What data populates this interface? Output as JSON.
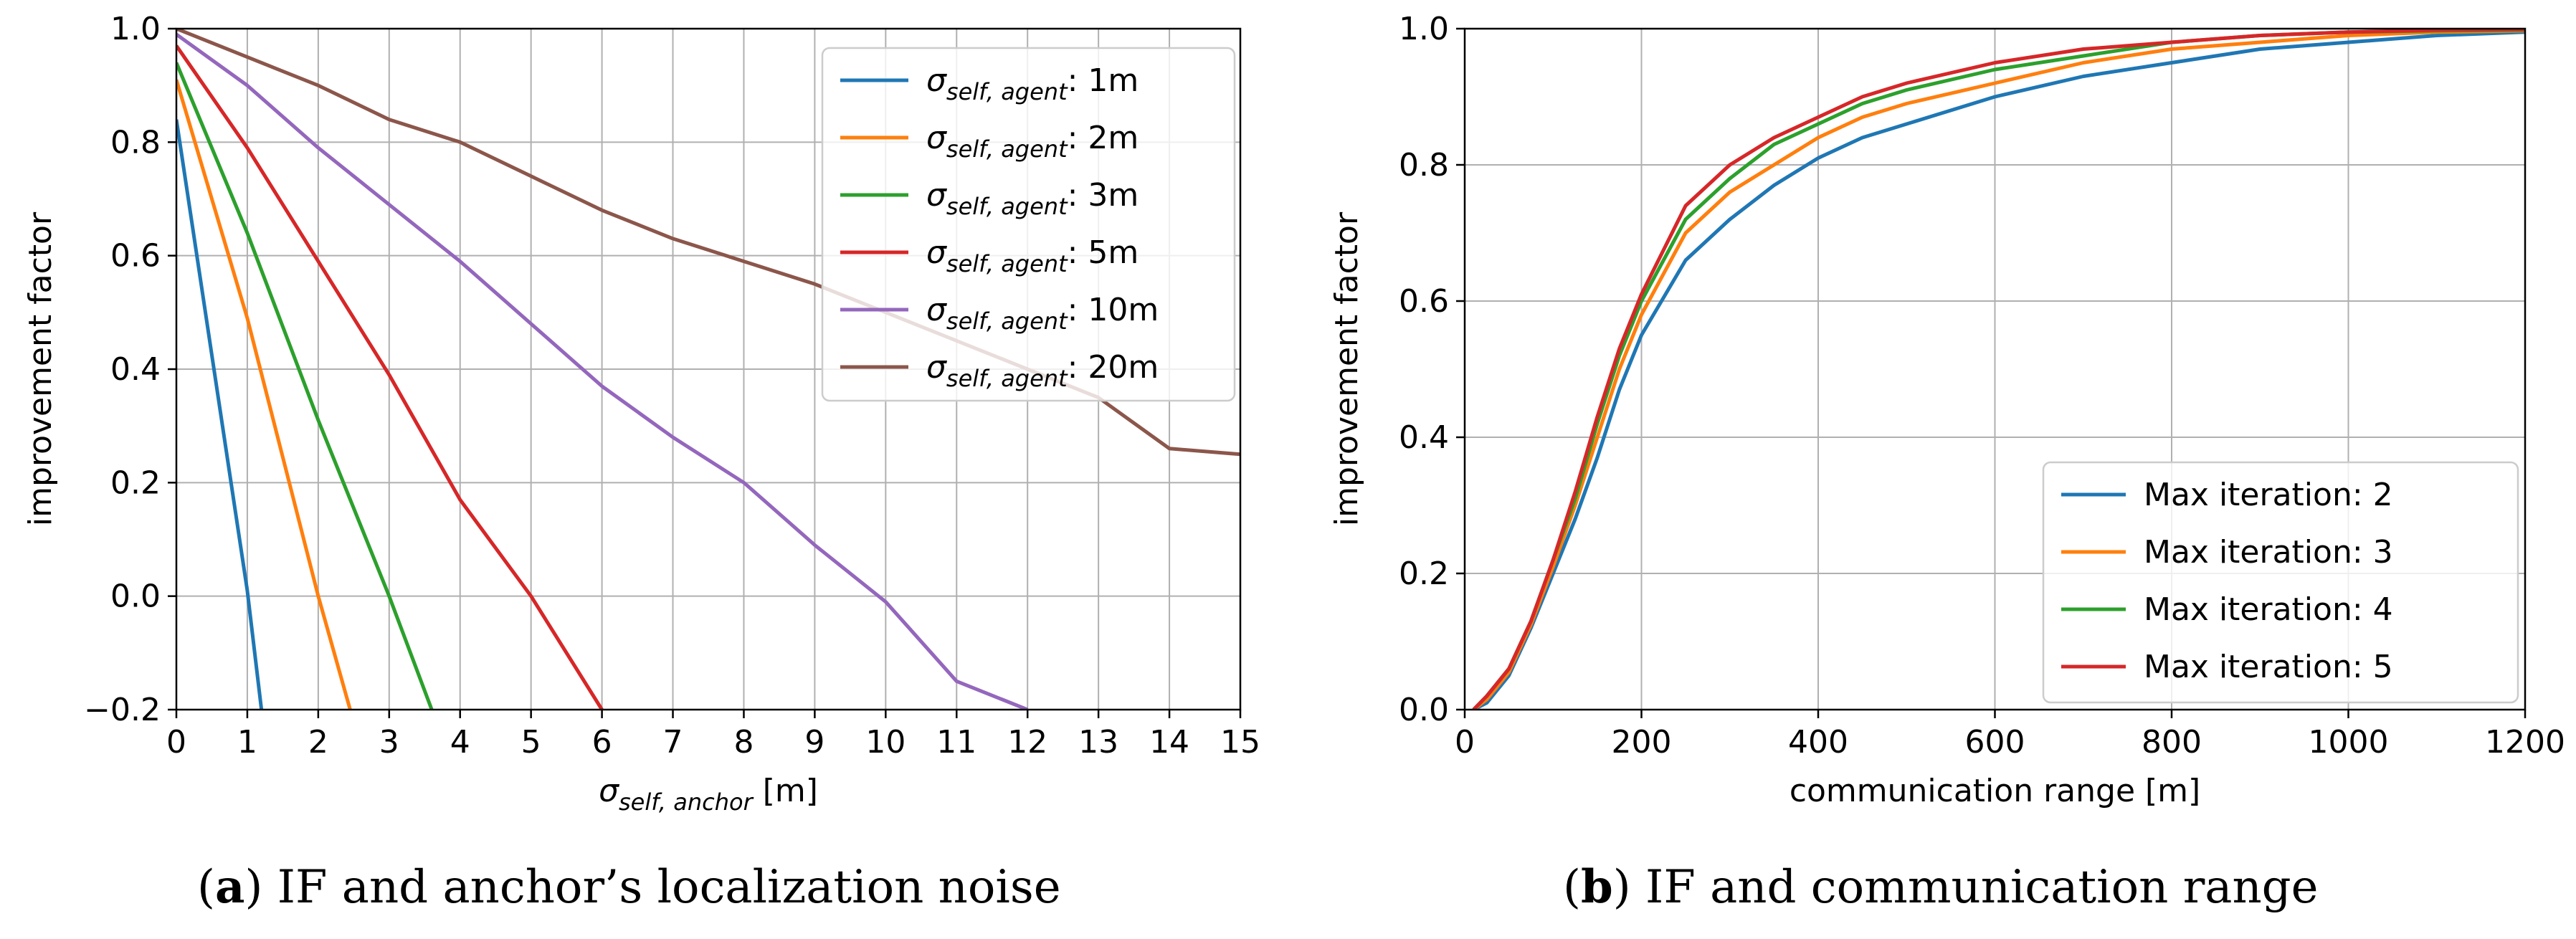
{
  "chart_data": [
    {
      "type": "line",
      "panel": "a",
      "xlabel": "σ",
      "xlabel_subscript": "self, anchor",
      "xlabel_unit": " [m]",
      "ylabel": "improvement factor",
      "xlim": [
        0,
        15
      ],
      "ylim": [
        -0.2,
        1.0
      ],
      "xticks": [
        0,
        1,
        2,
        3,
        4,
        5,
        6,
        7,
        8,
        9,
        10,
        11,
        12,
        13,
        14,
        15
      ],
      "xtick_labels": [
        "0",
        "1",
        "2",
        "3",
        "4",
        "5",
        "6",
        "7",
        "8",
        "9",
        "10",
        "11",
        "12",
        "13",
        "14",
        "15"
      ],
      "yticks": [
        -0.2,
        0.0,
        0.2,
        0.4,
        0.6,
        0.8,
        1.0
      ],
      "ytick_labels": [
        "−0.2",
        "0.0",
        "0.2",
        "0.4",
        "0.6",
        "0.8",
        "1.0"
      ],
      "grid": true,
      "legend_position": "top-right",
      "series": [
        {
          "name": "σ",
          "sub": "self, agent",
          "suffix": ": 1m",
          "color": "#1f77b4",
          "x": [
            0,
            1,
            1.2
          ],
          "y": [
            0.84,
            0.01,
            -0.2
          ]
        },
        {
          "name": "σ",
          "sub": "self, agent",
          "suffix": ": 2m",
          "color": "#ff7f0e",
          "x": [
            0,
            1,
            2,
            2.45
          ],
          "y": [
            0.91,
            0.49,
            0.0,
            -0.2
          ]
        },
        {
          "name": "σ",
          "sub": "self, agent",
          "suffix": ": 3m",
          "color": "#2ca02c",
          "x": [
            0,
            1,
            2,
            3,
            3.6
          ],
          "y": [
            0.94,
            0.64,
            0.31,
            0.0,
            -0.2
          ]
        },
        {
          "name": "σ",
          "sub": "self, agent",
          "suffix": ": 5m",
          "color": "#d62728",
          "x": [
            0,
            1,
            2,
            3,
            4,
            5,
            6
          ],
          "y": [
            0.97,
            0.79,
            0.59,
            0.39,
            0.17,
            0.0,
            -0.2
          ]
        },
        {
          "name": "σ",
          "sub": "self, agent",
          "suffix": ": 10m",
          "color": "#9467bd",
          "x": [
            0,
            1,
            2,
            3,
            4,
            5,
            6,
            7,
            8,
            9,
            10,
            11,
            12
          ],
          "y": [
            0.99,
            0.9,
            0.79,
            0.69,
            0.59,
            0.48,
            0.37,
            0.28,
            0.2,
            0.09,
            -0.01,
            -0.15,
            -0.2
          ]
        },
        {
          "name": "σ",
          "sub": "self, agent",
          "suffix": ": 20m",
          "color": "#8c564b",
          "x": [
            0,
            1,
            2,
            3,
            4,
            5,
            6,
            7,
            8,
            9,
            10,
            11,
            12,
            13,
            14,
            15
          ],
          "y": [
            1.0,
            0.95,
            0.9,
            0.84,
            0.8,
            0.74,
            0.68,
            0.63,
            0.59,
            0.55,
            0.5,
            0.45,
            0.4,
            0.35,
            0.26,
            0.25
          ]
        }
      ]
    },
    {
      "type": "line",
      "panel": "b",
      "xlabel": "communication range [m]",
      "ylabel": "improvement factor",
      "xlim": [
        0,
        1200
      ],
      "ylim": [
        0.0,
        1.0
      ],
      "xticks": [
        0,
        200,
        400,
        600,
        800,
        1000,
        1200
      ],
      "xtick_labels": [
        "0",
        "200",
        "400",
        "600",
        "800",
        "1000",
        "1200"
      ],
      "yticks": [
        0.0,
        0.2,
        0.4,
        0.6,
        0.8,
        1.0
      ],
      "ytick_labels": [
        "0.0",
        "0.2",
        "0.4",
        "0.6",
        "0.8",
        "1.0"
      ],
      "grid": true,
      "legend_position": "bottom-right",
      "series": [
        {
          "name": "Max iteration: 2",
          "color": "#1f77b4",
          "x": [
            10,
            25,
            50,
            75,
            100,
            125,
            150,
            175,
            200,
            250,
            300,
            350,
            400,
            450,
            500,
            600,
            700,
            800,
            900,
            1000,
            1100,
            1200
          ],
          "y": [
            0.0,
            0.01,
            0.05,
            0.12,
            0.2,
            0.28,
            0.37,
            0.47,
            0.55,
            0.66,
            0.72,
            0.77,
            0.81,
            0.84,
            0.86,
            0.9,
            0.93,
            0.95,
            0.97,
            0.98,
            0.99,
            0.995
          ]
        },
        {
          "name": "Max iteration: 3",
          "color": "#ff7f0e",
          "x": [
            10,
            25,
            50,
            75,
            100,
            125,
            150,
            175,
            200,
            250,
            300,
            350,
            400,
            450,
            500,
            600,
            700,
            800,
            900,
            1000,
            1100,
            1200
          ],
          "y": [
            0.0,
            0.015,
            0.055,
            0.125,
            0.21,
            0.3,
            0.4,
            0.5,
            0.58,
            0.7,
            0.76,
            0.8,
            0.84,
            0.87,
            0.89,
            0.92,
            0.95,
            0.97,
            0.98,
            0.99,
            0.995,
            0.997
          ]
        },
        {
          "name": "Max iteration: 4",
          "color": "#2ca02c",
          "x": [
            10,
            25,
            50,
            75,
            100,
            125,
            150,
            175,
            200,
            250,
            300,
            350,
            400,
            450,
            500,
            600,
            700,
            800,
            900,
            1000,
            1100,
            1200
          ],
          "y": [
            0.0,
            0.02,
            0.06,
            0.13,
            0.22,
            0.31,
            0.42,
            0.52,
            0.6,
            0.72,
            0.78,
            0.83,
            0.86,
            0.89,
            0.91,
            0.94,
            0.96,
            0.98,
            0.99,
            0.995,
            0.997,
            0.998
          ]
        },
        {
          "name": "Max iteration: 5",
          "color": "#d62728",
          "x": [
            10,
            25,
            50,
            75,
            100,
            125,
            150,
            175,
            200,
            250,
            300,
            350,
            400,
            450,
            500,
            600,
            700,
            800,
            900,
            1000,
            1100,
            1200
          ],
          "y": [
            0.0,
            0.02,
            0.06,
            0.13,
            0.22,
            0.32,
            0.43,
            0.53,
            0.61,
            0.74,
            0.8,
            0.84,
            0.87,
            0.9,
            0.92,
            0.95,
            0.97,
            0.98,
            0.99,
            0.995,
            0.998,
            0.999
          ]
        }
      ]
    }
  ],
  "captions": {
    "a": {
      "label": "a",
      "text": " IF and anchor’s localization noise"
    },
    "b": {
      "label": "b",
      "text": " IF and communication range"
    }
  }
}
